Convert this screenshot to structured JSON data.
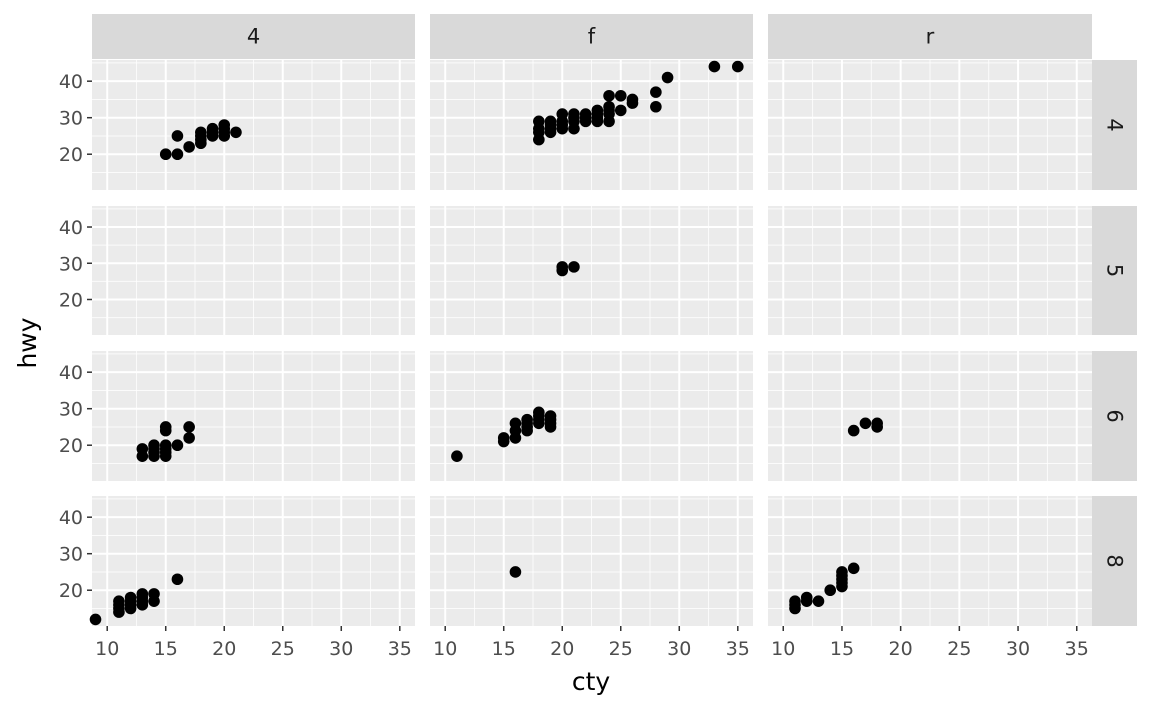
{
  "chart_data": {
    "type": "scatter",
    "facet_layout": "grid",
    "col_facet_values": [
      "4",
      "f",
      "r"
    ],
    "row_facet_values": [
      "4",
      "5",
      "6",
      "8"
    ],
    "xlabel": "cty",
    "ylabel": "hwy",
    "xlim": [
      8.7,
      36.3
    ],
    "ylim": [
      10.2,
      45.8
    ],
    "x_ticks": [
      10,
      15,
      20,
      25,
      30,
      35
    ],
    "y_ticks": [
      20,
      30,
      40
    ],
    "grid": true,
    "colors": {
      "panel_bg": "#ebebeb",
      "strip_bg": "#d9d9d9",
      "grid_major": "#ffffff",
      "point": "#000000",
      "tick_text": "#4d4d4d"
    },
    "panels": [
      {
        "col": "4",
        "row": "4",
        "points": [
          [
            15,
            20
          ],
          [
            16,
            20
          ],
          [
            16,
            25
          ],
          [
            17,
            22
          ],
          [
            18,
            23
          ],
          [
            18,
            24
          ],
          [
            18,
            25
          ],
          [
            18,
            26
          ],
          [
            19,
            25
          ],
          [
            19,
            26
          ],
          [
            19,
            27
          ],
          [
            20,
            25
          ],
          [
            20,
            26
          ],
          [
            20,
            27
          ],
          [
            20,
            28
          ],
          [
            21,
            26
          ]
        ]
      },
      {
        "col": "f",
        "row": "4",
        "points": [
          [
            18,
            24
          ],
          [
            18,
            26
          ],
          [
            18,
            27
          ],
          [
            18,
            29
          ],
          [
            19,
            26
          ],
          [
            19,
            27
          ],
          [
            19,
            28
          ],
          [
            19,
            29
          ],
          [
            20,
            27
          ],
          [
            20,
            28
          ],
          [
            20,
            29
          ],
          [
            20,
            31
          ],
          [
            21,
            27
          ],
          [
            21,
            29
          ],
          [
            21,
            30
          ],
          [
            21,
            31
          ],
          [
            22,
            29
          ],
          [
            22,
            30
          ],
          [
            22,
            31
          ],
          [
            23,
            29
          ],
          [
            23,
            30
          ],
          [
            23,
            31
          ],
          [
            23,
            32
          ],
          [
            24,
            29
          ],
          [
            24,
            31
          ],
          [
            24,
            32
          ],
          [
            24,
            33
          ],
          [
            24,
            36
          ],
          [
            25,
            32
          ],
          [
            25,
            36
          ],
          [
            26,
            34
          ],
          [
            26,
            35
          ],
          [
            28,
            33
          ],
          [
            28,
            37
          ],
          [
            29,
            41
          ],
          [
            33,
            44
          ],
          [
            35,
            44
          ]
        ]
      },
      {
        "col": "r",
        "row": "4",
        "points": []
      },
      {
        "col": "4",
        "row": "5",
        "points": []
      },
      {
        "col": "f",
        "row": "5",
        "points": [
          [
            20,
            28
          ],
          [
            20,
            29
          ],
          [
            21,
            29
          ]
        ]
      },
      {
        "col": "r",
        "row": "5",
        "points": []
      },
      {
        "col": "4",
        "row": "6",
        "points": [
          [
            13,
            17
          ],
          [
            13,
            19
          ],
          [
            14,
            17
          ],
          [
            14,
            18
          ],
          [
            14,
            19
          ],
          [
            14,
            20
          ],
          [
            15,
            17
          ],
          [
            15,
            18
          ],
          [
            15,
            19
          ],
          [
            15,
            20
          ],
          [
            15,
            24
          ],
          [
            15,
            25
          ],
          [
            16,
            20
          ],
          [
            17,
            22
          ],
          [
            17,
            25
          ]
        ]
      },
      {
        "col": "f",
        "row": "6",
        "points": [
          [
            11,
            17
          ],
          [
            15,
            21
          ],
          [
            15,
            22
          ],
          [
            16,
            22
          ],
          [
            16,
            24
          ],
          [
            16,
            26
          ],
          [
            17,
            24
          ],
          [
            17,
            25
          ],
          [
            17,
            26
          ],
          [
            17,
            27
          ],
          [
            18,
            26
          ],
          [
            18,
            27
          ],
          [
            18,
            28
          ],
          [
            18,
            29
          ],
          [
            19,
            25
          ],
          [
            19,
            26
          ],
          [
            19,
            27
          ],
          [
            19,
            28
          ]
        ]
      },
      {
        "col": "r",
        "row": "6",
        "points": [
          [
            16,
            24
          ],
          [
            17,
            26
          ],
          [
            18,
            25
          ],
          [
            18,
            26
          ]
        ]
      },
      {
        "col": "4",
        "row": "8",
        "points": [
          [
            9,
            12
          ],
          [
            11,
            14
          ],
          [
            11,
            15
          ],
          [
            11,
            16
          ],
          [
            11,
            17
          ],
          [
            12,
            15
          ],
          [
            12,
            16
          ],
          [
            12,
            17
          ],
          [
            12,
            18
          ],
          [
            13,
            16
          ],
          [
            13,
            17
          ],
          [
            13,
            18
          ],
          [
            13,
            19
          ],
          [
            14,
            17
          ],
          [
            14,
            19
          ],
          [
            16,
            23
          ]
        ]
      },
      {
        "col": "f",
        "row": "8",
        "points": [
          [
            16,
            25
          ]
        ]
      },
      {
        "col": "r",
        "row": "8",
        "points": [
          [
            11,
            15
          ],
          [
            11,
            16
          ],
          [
            11,
            17
          ],
          [
            12,
            17
          ],
          [
            12,
            18
          ],
          [
            13,
            17
          ],
          [
            14,
            20
          ],
          [
            15,
            21
          ],
          [
            15,
            22
          ],
          [
            15,
            23
          ],
          [
            15,
            24
          ],
          [
            15,
            25
          ],
          [
            16,
            26
          ]
        ]
      }
    ]
  }
}
